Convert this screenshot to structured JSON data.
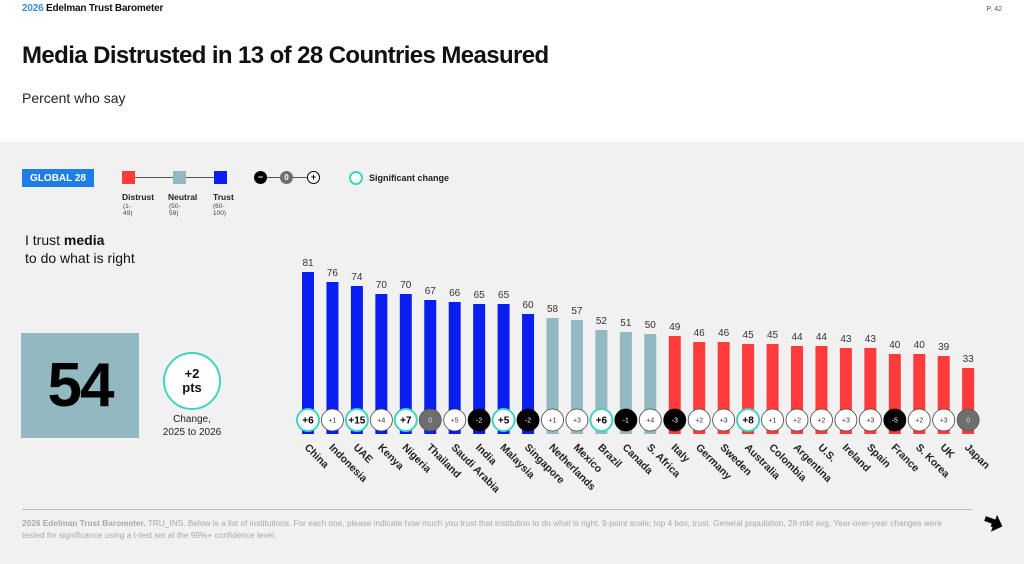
{
  "header": {
    "brand_year": "2026",
    "brand_name": " Edelman Trust Barometer",
    "page_number": "P. 42",
    "title": "Media Distrusted in 13 of 28 Countries Measured",
    "subtitle": "Percent who say"
  },
  "legend": {
    "global_label": "GLOBAL 28",
    "scale": [
      {
        "label": "Distrust",
        "range": "(1-49)",
        "color": "#ff3b3b"
      },
      {
        "label": "Neutral",
        "range": "(50-59)",
        "color": "#92b8c2"
      },
      {
        "label": "Trust",
        "range": "(60-100)",
        "color": "#0a1ef2"
      }
    ],
    "change_symbols": {
      "negative": "−",
      "zero": "0",
      "positive": "+"
    },
    "significant_change_label": "Significant change",
    "significant_color": "#3fd3c0"
  },
  "metric": {
    "question_prefix": "I trust ",
    "question_bold": "media",
    "question_suffix": "to do what is right",
    "global_score": "54",
    "global_change_value": "+2",
    "global_change_unit": "pts",
    "global_change_caption_line1": "Change,",
    "global_change_caption_line2": "2025 to 2026"
  },
  "chart_data": {
    "type": "bar",
    "title": "I trust media to do what is right",
    "xlabel": "",
    "ylabel": "Percent who say",
    "ylim": [
      0,
      100
    ],
    "grid": false,
    "categories": [
      "China",
      "Indonesia",
      "UAE",
      "Kenya",
      "Nigeria",
      "Thailand",
      "Saudi Arabia",
      "India",
      "Malaysia",
      "Singapore",
      "Netherlands",
      "Mexico",
      "Brazil",
      "Canada",
      "S. Africa",
      "Italy",
      "Germany",
      "Sweden",
      "Australia",
      "Colombia",
      "Argentina",
      "U.S.",
      "Ireland",
      "Spain",
      "France",
      "S. Korea",
      "UK",
      "Japan"
    ],
    "values": [
      81,
      76,
      74,
      70,
      70,
      67,
      66,
      65,
      65,
      60,
      58,
      57,
      52,
      51,
      50,
      49,
      46,
      46,
      45,
      45,
      44,
      44,
      43,
      43,
      40,
      40,
      39,
      33
    ],
    "changes": [
      "+6",
      "+1",
      "+15",
      "+4",
      "+7",
      "0",
      "+5",
      "-2",
      "+5",
      "-2",
      "+1",
      "+3",
      "+6",
      "-1",
      "+4",
      "-3",
      "+2",
      "+3",
      "+8",
      "+1",
      "+2",
      "+2",
      "+3",
      "+3",
      "-5",
      "+2",
      "+3",
      "0"
    ],
    "significant": [
      true,
      false,
      true,
      false,
      true,
      false,
      false,
      false,
      true,
      false,
      false,
      false,
      true,
      false,
      false,
      false,
      false,
      false,
      true,
      false,
      false,
      false,
      false,
      false,
      false,
      false,
      false,
      false
    ],
    "category_colors": {
      "trust": "#0a1ef2",
      "neutral": "#92b8c2",
      "distrust": "#ff3b3b"
    },
    "thresholds": {
      "trust_min": 60,
      "neutral_min": 50
    }
  },
  "footer": {
    "source_bold": "2026 Edelman Trust Barometer.",
    "source_text": " TRU_INS. Below is a list of institutions. For each one, please indicate how much you trust that institution to do what is right. 9-point scale; top 4 box, trust. General population, 28-mkt avg. Year-over-year changes were tested for significance using a t-test set at the 99%+ confidence level."
  }
}
